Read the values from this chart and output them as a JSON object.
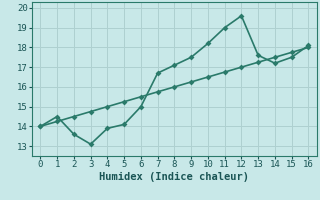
{
  "line1_x": [
    0,
    1,
    2,
    3,
    4,
    5,
    6,
    7,
    8,
    9,
    10,
    11,
    12,
    13,
    14,
    15,
    16
  ],
  "line1_y": [
    14.0,
    14.5,
    13.6,
    13.1,
    13.9,
    14.1,
    15.0,
    16.7,
    17.1,
    17.5,
    18.2,
    19.0,
    19.6,
    17.6,
    17.2,
    17.5,
    18.1
  ],
  "line2_x": [
    0,
    1,
    2,
    3,
    4,
    5,
    6,
    7,
    8,
    9,
    10,
    11,
    12,
    13,
    14,
    15,
    16
  ],
  "line2_y": [
    14.0,
    14.25,
    14.5,
    14.75,
    15.0,
    15.25,
    15.5,
    15.75,
    16.0,
    16.25,
    16.5,
    16.75,
    17.0,
    17.25,
    17.5,
    17.75,
    18.0
  ],
  "line_color": "#2a7a6a",
  "bg_color": "#c8e8e8",
  "grid_color": "#aed0d0",
  "xlabel": "Humidex (Indice chaleur)",
  "xlim": [
    -0.5,
    16.5
  ],
  "ylim": [
    12.5,
    20.3
  ],
  "xticks": [
    0,
    1,
    2,
    3,
    4,
    5,
    6,
    7,
    8,
    9,
    10,
    11,
    12,
    13,
    14,
    15,
    16
  ],
  "yticks": [
    13,
    14,
    15,
    16,
    17,
    18,
    19,
    20
  ],
  "marker_size": 3,
  "line_width": 1.2,
  "tick_fontsize": 6.5,
  "xlabel_fontsize": 7.5
}
